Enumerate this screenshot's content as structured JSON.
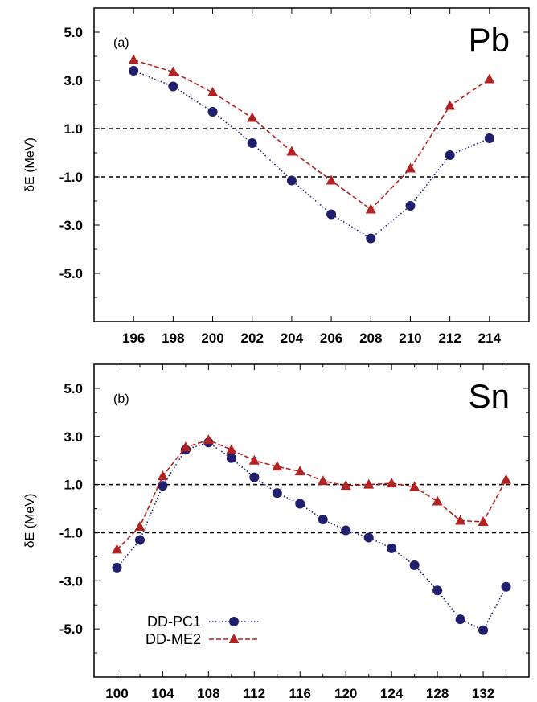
{
  "chart_data": [
    {
      "type": "line",
      "panel_label": "(a)",
      "element": "Pb",
      "ylabel": "δE (MeV)",
      "xlim": [
        194,
        216
      ],
      "ylim": [
        -7,
        6
      ],
      "xticks": [
        "196",
        "198",
        "200",
        "202",
        "204",
        "206",
        "208",
        "210",
        "212",
        "214"
      ],
      "yticks": [
        "5.0",
        "3.0",
        "1.0",
        "-1.0",
        "-3.0",
        "-5.0"
      ],
      "reference_lines": [
        1.0,
        -1.0
      ],
      "x": [
        196,
        198,
        200,
        202,
        204,
        206,
        208,
        210,
        212,
        214
      ],
      "series": [
        {
          "name": "DD-PC1",
          "values": [
            3.4,
            2.75,
            1.7,
            0.4,
            -1.15,
            -2.55,
            -3.55,
            -2.2,
            -0.1,
            0.6
          ],
          "color": "#1f1f6e",
          "marker": "circle",
          "line": "dotted"
        },
        {
          "name": "DD-ME2",
          "values": [
            3.85,
            3.35,
            2.5,
            1.45,
            0.05,
            -1.15,
            -2.35,
            -0.65,
            1.95,
            3.05
          ],
          "color": "#b22222",
          "marker": "triangle",
          "line": "dashed"
        }
      ]
    },
    {
      "type": "line",
      "panel_label": "(b)",
      "element": "Sn",
      "ylabel": "δE (MeV)",
      "xlim": [
        98,
        136
      ],
      "ylim": [
        -7,
        6
      ],
      "xticks": [
        "100",
        "104",
        "108",
        "112",
        "116",
        "120",
        "124",
        "128",
        "132"
      ],
      "yticks": [
        "5.0",
        "3.0",
        "1.0",
        "-1.0",
        "-3.0",
        "-5.0"
      ],
      "reference_lines": [
        1.0,
        -1.0
      ],
      "x": [
        100,
        102,
        104,
        106,
        108,
        110,
        112,
        114,
        116,
        118,
        120,
        122,
        124,
        126,
        128,
        130,
        132,
        134
      ],
      "series": [
        {
          "name": "DD-PC1",
          "values": [
            -2.45,
            -1.3,
            0.95,
            2.45,
            2.75,
            2.1,
            1.3,
            0.65,
            0.2,
            -0.45,
            -0.9,
            -1.2,
            -1.65,
            -2.35,
            -3.4,
            -4.6,
            -5.05,
            -3.25
          ],
          "color": "#1f1f6e",
          "marker": "circle",
          "line": "dotted"
        },
        {
          "name": "DD-ME2",
          "values": [
            -1.7,
            -0.75,
            1.35,
            2.55,
            2.85,
            2.45,
            2.0,
            1.75,
            1.55,
            1.15,
            0.95,
            1.0,
            1.05,
            0.9,
            0.3,
            -0.5,
            -0.55,
            1.2
          ],
          "color": "#b22222",
          "marker": "triangle",
          "line": "dashed"
        }
      ],
      "legend": "bottom-left"
    }
  ]
}
